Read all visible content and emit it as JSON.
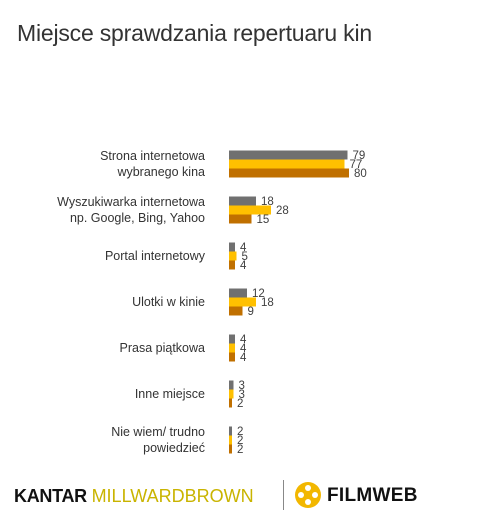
{
  "title": "Miejsce sprawdzania repertuaru kin",
  "chart_data": {
    "type": "bar",
    "orientation": "horizontal",
    "categories": [
      [
        "Strona internetowa",
        "wybranego kina"
      ],
      [
        "Wyszukiwarka internetowa",
        "np. Google, Bing, Yahoo"
      ],
      [
        "Portal internetowy"
      ],
      [
        "Ulotki w kinie"
      ],
      [
        "Prasa piątkowa"
      ],
      [
        "Inne miejsce"
      ],
      [
        "Nie wiem/ trudno",
        "powiedzieć"
      ]
    ],
    "series": [
      {
        "values": [
          79,
          18,
          4,
          12,
          4,
          3,
          2
        ],
        "color": "#707070"
      },
      {
        "values": [
          77,
          28,
          5,
          18,
          4,
          3,
          2
        ],
        "color": "#ffc000"
      },
      {
        "values": [
          80,
          15,
          4,
          9,
          4,
          2,
          2
        ],
        "color": "#c07000"
      }
    ],
    "xlim": [
      0,
      100
    ],
    "grid": false,
    "data_labels": true,
    "legend": "none"
  },
  "footer": {
    "kantar_prefix": "KANTAR",
    "kantar_brand": "MILLWARDBROWN",
    "filmweb": "FILMWEB"
  }
}
